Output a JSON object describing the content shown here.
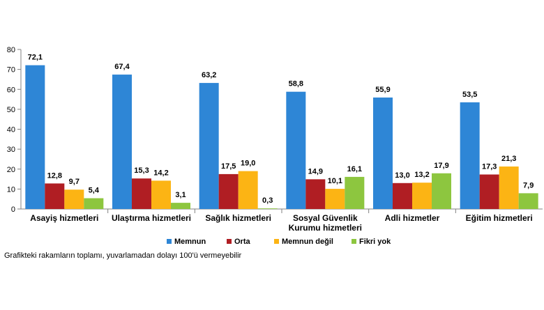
{
  "chart_data": {
    "type": "bar",
    "categories": [
      [
        "Asayiş hizmetleri"
      ],
      [
        "Ulaştırma hizmetleri"
      ],
      [
        "Sağlık hizmetleri"
      ],
      [
        "Sosyal Güvenlik",
        "Kurumu hizmetleri"
      ],
      [
        "Adli hizmetler"
      ],
      [
        "Eğitim hizmetleri"
      ]
    ],
    "series": [
      {
        "name": "Memnun",
        "color": "#2E86D6",
        "values": [
          72.1,
          67.4,
          63.2,
          58.8,
          55.9,
          53.5
        ],
        "labels": [
          "72,1",
          "67,4",
          "63,2",
          "58,8",
          "55,9",
          "53,5"
        ]
      },
      {
        "name": "Orta",
        "color": "#B01E23",
        "values": [
          12.8,
          15.3,
          17.5,
          14.9,
          13.0,
          17.3
        ],
        "labels": [
          "12,8",
          "15,3",
          "17,5",
          "14,9",
          "13,0",
          "17,3"
        ]
      },
      {
        "name": "Memnun değil",
        "color": "#FCB414",
        "values": [
          9.7,
          14.2,
          19.0,
          10.1,
          13.2,
          21.3
        ],
        "labels": [
          "9,7",
          "14,2",
          "19,0",
          "10,1",
          "13,2",
          "21,3"
        ]
      },
      {
        "name": "Fikri yok",
        "color": "#8DC63F",
        "values": [
          5.4,
          3.1,
          0.3,
          16.1,
          17.9,
          7.9
        ],
        "labels": [
          "5,4",
          "3,1",
          "0,3",
          "16,1",
          "17,9",
          "7,9"
        ]
      }
    ],
    "ylim": [
      0,
      80
    ],
    "yticks": [
      0,
      10,
      20,
      30,
      40,
      50,
      60,
      70,
      80
    ],
    "grid": false,
    "legend_position": "bottom-center"
  },
  "footnote": "Grafikteki rakamların toplamı, yuvarlamadan dolayı 100'ü vermeyebilir"
}
